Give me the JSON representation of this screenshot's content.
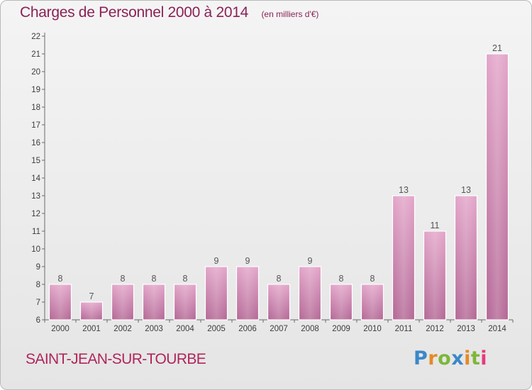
{
  "chart_data": {
    "type": "bar",
    "title": "Charges de Personnel 2000 à 2014",
    "subtitle": "(en milliers d'€)",
    "categories": [
      "2000",
      "2001",
      "2002",
      "2003",
      "2004",
      "2005",
      "2006",
      "2007",
      "2008",
      "2009",
      "2010",
      "2011",
      "2012",
      "2013",
      "2014"
    ],
    "values": [
      8,
      7,
      8,
      8,
      8,
      9,
      9,
      8,
      9,
      8,
      8,
      13,
      11,
      13,
      21
    ],
    "value_labels": [
      "8",
      "7",
      "8",
      "8",
      "8",
      "9",
      "9",
      "8",
      "9",
      "8",
      "8",
      "13",
      "11",
      "13",
      "21"
    ],
    "y_ticks": [
      "6",
      "7",
      "8",
      "9",
      "10",
      "11",
      "12",
      "13",
      "14",
      "15",
      "16",
      "17",
      "18",
      "19",
      "20",
      "21",
      "22"
    ],
    "ylim": [
      6,
      22
    ],
    "grid": false,
    "legend": "none",
    "bar_color": "#d27fb0"
  },
  "footer": {
    "commune": "SAINT-JEAN-SUR-TOURBE",
    "logo": [
      "P",
      "r",
      "o",
      "x",
      "i",
      "t",
      "i"
    ]
  }
}
